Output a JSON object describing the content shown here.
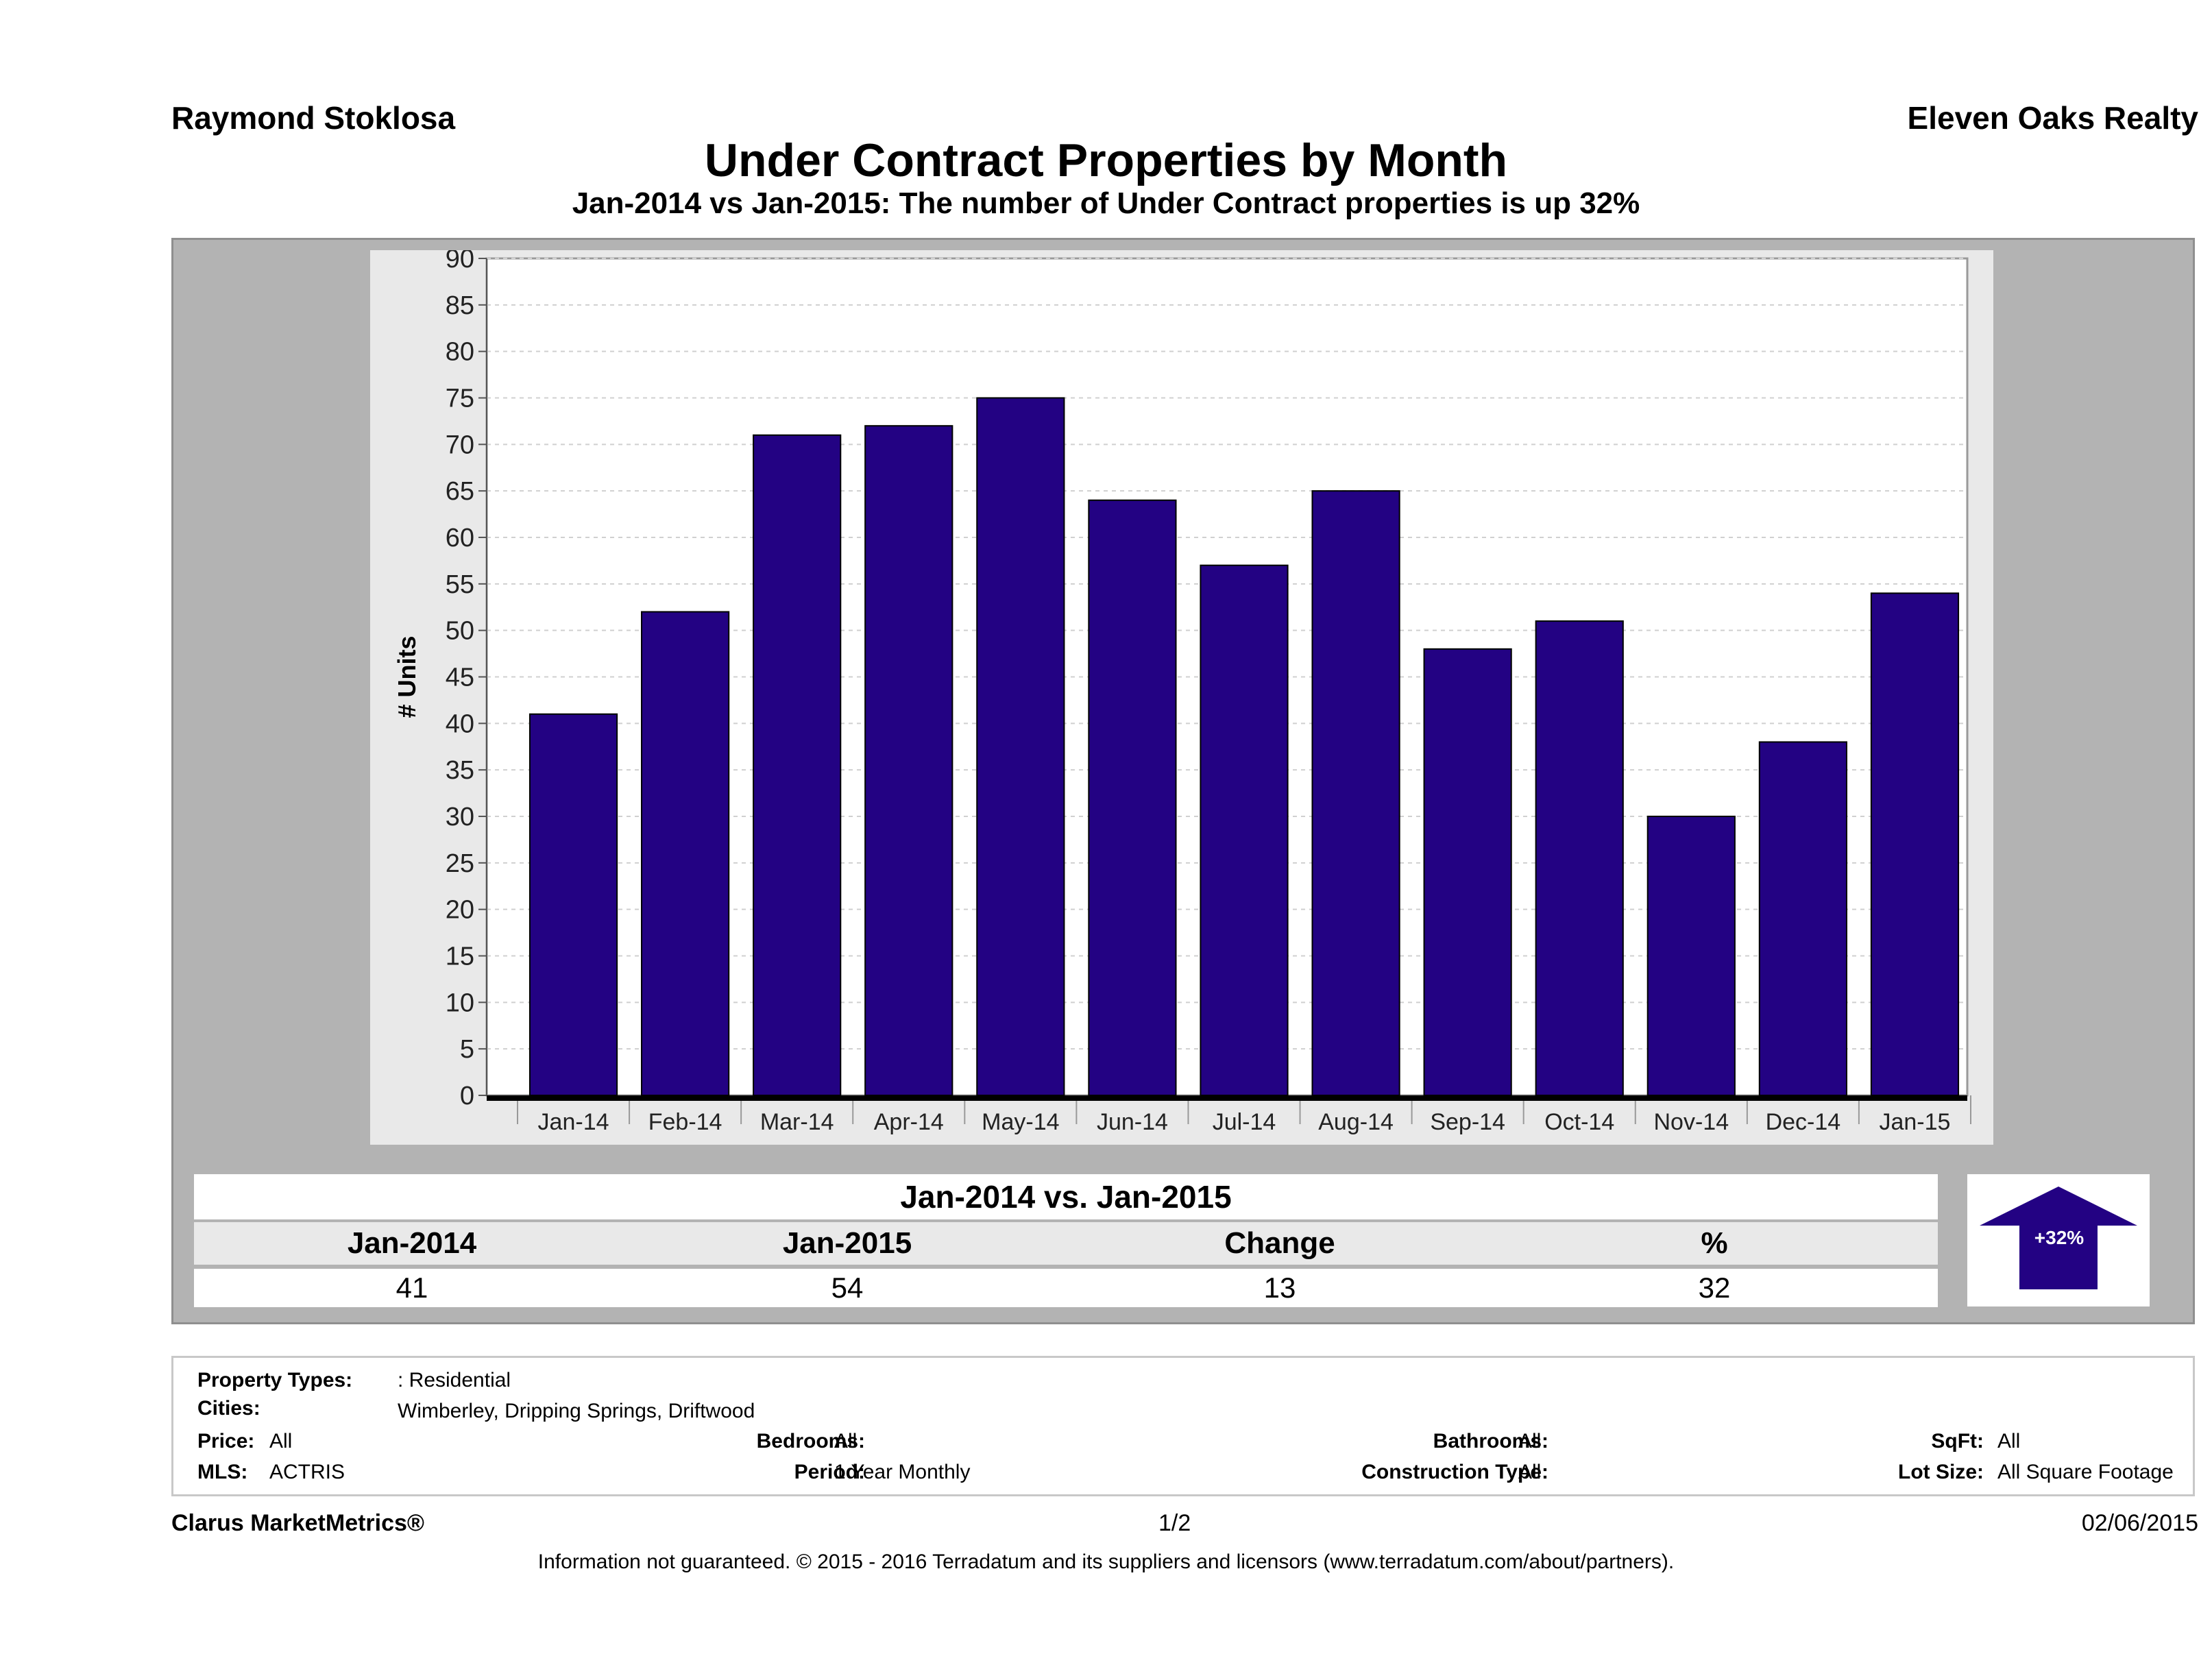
{
  "header": {
    "agent": "Raymond Stoklosa",
    "brokerage": "Eleven Oaks Realty",
    "title": "Under Contract Properties by Month",
    "subtitle": "Jan-2014 vs Jan-2015: The number of Under Contract  properties is up 32%"
  },
  "chart_data": {
    "type": "bar",
    "title": "Under Contract Properties by Month",
    "xlabel": "",
    "ylabel": "# Units",
    "categories": [
      "Jan-14",
      "Feb-14",
      "Mar-14",
      "Apr-14",
      "May-14",
      "Jun-14",
      "Jul-14",
      "Aug-14",
      "Sep-14",
      "Oct-14",
      "Nov-14",
      "Dec-14",
      "Jan-15"
    ],
    "values": [
      41,
      52,
      71,
      72,
      75,
      64,
      57,
      65,
      48,
      51,
      30,
      38,
      54
    ],
    "ylim": [
      0,
      90
    ],
    "yticks": [
      0,
      5,
      10,
      15,
      20,
      25,
      30,
      35,
      40,
      45,
      50,
      55,
      60,
      65,
      70,
      75,
      80,
      85,
      90
    ],
    "grid": true,
    "bar_color": "#230283"
  },
  "summary": {
    "heading": "Jan-2014 vs. Jan-2015",
    "columns": [
      "Jan-2014",
      "Jan-2015",
      "Change",
      "%"
    ],
    "values": [
      "41",
      "54",
      "13",
      "32"
    ],
    "badge": "+32%"
  },
  "filters": {
    "property_types_label": "Property Types:",
    "property_types_value": ": Residential",
    "cities_label": "Cities:",
    "cities_value": "Wimberley, Dripping Springs, Driftwood",
    "price_label": "Price:",
    "price_value": "All",
    "mls_label": "MLS:",
    "mls_value": "ACTRIS",
    "bedrooms_label": "Bedrooms:",
    "bedrooms_value": "All",
    "period_label": "Period:",
    "period_value": "1 Year Monthly",
    "bathrooms_label": "Bathrooms:",
    "bathrooms_value": "All",
    "construction_label": "Construction Type:",
    "construction_value": "All",
    "sqft_label": "SqFt:",
    "sqft_value": "All",
    "lot_label": "Lot Size:",
    "lot_value": "All Square Footage"
  },
  "footer": {
    "brand": "Clarus MarketMetrics®",
    "page": "1/2",
    "date": "02/06/2015",
    "disclaimer": "Information not guaranteed. © 2015 - 2016 Terradatum and its suppliers and licensors (www.terradatum.com/about/partners)."
  }
}
